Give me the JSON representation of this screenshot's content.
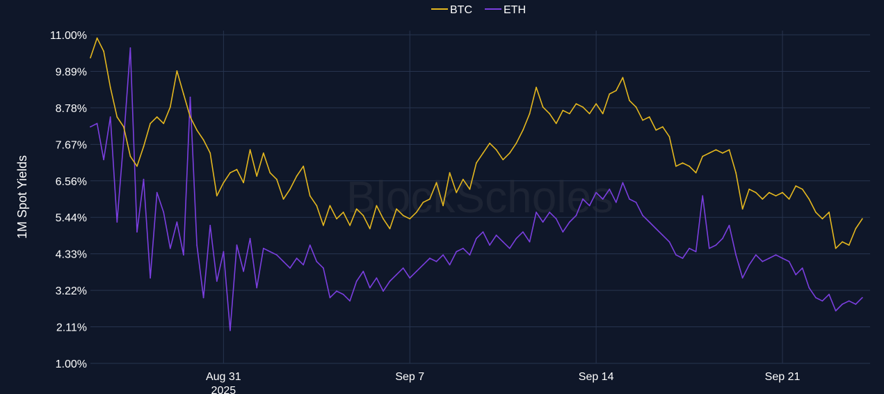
{
  "watermark": "BlockScholes",
  "chart_data": {
    "type": "line",
    "ylabel": "1M Spot Yields",
    "xlabel": "",
    "ylim": [
      1.0,
      11.0
    ],
    "xlim": [
      "2025-08-26 00:00",
      "2025-09-24 07:00"
    ],
    "yticks": [
      "11.00%",
      "9.89%",
      "8.78%",
      "7.67%",
      "6.56%",
      "5.44%",
      "4.33%",
      "3.22%",
      "2.11%",
      "1.00%"
    ],
    "xticks": [
      {
        "date": "2025-08-31",
        "label": "Aug 31",
        "sublabel": "2025"
      },
      {
        "date": "2025-09-07",
        "label": "Sep 7",
        "sublabel": ""
      },
      {
        "date": "2025-09-14",
        "label": "Sep 14",
        "sublabel": ""
      },
      {
        "date": "2025-09-21",
        "label": "Sep 21",
        "sublabel": ""
      }
    ],
    "grid": true,
    "legend_position": "top-center",
    "series": [
      {
        "name": "BTC",
        "color": "#e5b81f",
        "points": [
          [
            "2025-08-26 00:00",
            10.3
          ],
          [
            "2025-08-26 06:00",
            10.9
          ],
          [
            "2025-08-26 12:00",
            10.5
          ],
          [
            "2025-08-26 18:00",
            9.4
          ],
          [
            "2025-08-27 00:00",
            8.5
          ],
          [
            "2025-08-27 06:00",
            8.2
          ],
          [
            "2025-08-27 12:00",
            7.3
          ],
          [
            "2025-08-27 18:00",
            7.0
          ],
          [
            "2025-08-28 00:00",
            7.6
          ],
          [
            "2025-08-28 06:00",
            8.3
          ],
          [
            "2025-08-28 12:00",
            8.5
          ],
          [
            "2025-08-28 18:00",
            8.3
          ],
          [
            "2025-08-29 00:00",
            8.8
          ],
          [
            "2025-08-29 06:00",
            9.9
          ],
          [
            "2025-08-29 12:00",
            9.2
          ],
          [
            "2025-08-29 18:00",
            8.5
          ],
          [
            "2025-08-30 00:00",
            8.1
          ],
          [
            "2025-08-30 06:00",
            7.8
          ],
          [
            "2025-08-30 12:00",
            7.4
          ],
          [
            "2025-08-30 18:00",
            6.1
          ],
          [
            "2025-08-31 00:00",
            6.5
          ],
          [
            "2025-08-31 06:00",
            6.8
          ],
          [
            "2025-08-31 12:00",
            6.9
          ],
          [
            "2025-08-31 18:00",
            6.5
          ],
          [
            "2025-09-01 00:00",
            7.5
          ],
          [
            "2025-09-01 06:00",
            6.7
          ],
          [
            "2025-09-01 12:00",
            7.4
          ],
          [
            "2025-09-01 18:00",
            6.8
          ],
          [
            "2025-09-02 00:00",
            6.6
          ],
          [
            "2025-09-02 06:00",
            6.0
          ],
          [
            "2025-09-02 12:00",
            6.3
          ],
          [
            "2025-09-02 18:00",
            6.7
          ],
          [
            "2025-09-03 00:00",
            7.0
          ],
          [
            "2025-09-03 06:00",
            6.1
          ],
          [
            "2025-09-03 12:00",
            5.8
          ],
          [
            "2025-09-03 18:00",
            5.2
          ],
          [
            "2025-09-04 00:00",
            5.8
          ],
          [
            "2025-09-04 06:00",
            5.4
          ],
          [
            "2025-09-04 12:00",
            5.6
          ],
          [
            "2025-09-04 18:00",
            5.2
          ],
          [
            "2025-09-05 00:00",
            5.7
          ],
          [
            "2025-09-05 06:00",
            5.5
          ],
          [
            "2025-09-05 12:00",
            5.1
          ],
          [
            "2025-09-05 18:00",
            5.8
          ],
          [
            "2025-09-06 00:00",
            5.4
          ],
          [
            "2025-09-06 06:00",
            5.1
          ],
          [
            "2025-09-06 12:00",
            5.7
          ],
          [
            "2025-09-06 18:00",
            5.5
          ],
          [
            "2025-09-07 00:00",
            5.4
          ],
          [
            "2025-09-07 06:00",
            5.6
          ],
          [
            "2025-09-07 12:00",
            5.9
          ],
          [
            "2025-09-07 18:00",
            6.0
          ],
          [
            "2025-09-08 00:00",
            6.5
          ],
          [
            "2025-09-08 06:00",
            5.8
          ],
          [
            "2025-09-08 12:00",
            6.8
          ],
          [
            "2025-09-08 18:00",
            6.2
          ],
          [
            "2025-09-09 00:00",
            6.6
          ],
          [
            "2025-09-09 06:00",
            6.3
          ],
          [
            "2025-09-09 12:00",
            7.1
          ],
          [
            "2025-09-09 18:00",
            7.4
          ],
          [
            "2025-09-10 00:00",
            7.7
          ],
          [
            "2025-09-10 06:00",
            7.5
          ],
          [
            "2025-09-10 12:00",
            7.2
          ],
          [
            "2025-09-10 18:00",
            7.4
          ],
          [
            "2025-09-11 00:00",
            7.7
          ],
          [
            "2025-09-11 06:00",
            8.1
          ],
          [
            "2025-09-11 12:00",
            8.6
          ],
          [
            "2025-09-11 18:00",
            9.4
          ],
          [
            "2025-09-12 00:00",
            8.8
          ],
          [
            "2025-09-12 06:00",
            8.6
          ],
          [
            "2025-09-12 12:00",
            8.3
          ],
          [
            "2025-09-12 18:00",
            8.7
          ],
          [
            "2025-09-13 00:00",
            8.6
          ],
          [
            "2025-09-13 06:00",
            8.9
          ],
          [
            "2025-09-13 12:00",
            8.8
          ],
          [
            "2025-09-13 18:00",
            8.6
          ],
          [
            "2025-09-14 00:00",
            8.9
          ],
          [
            "2025-09-14 06:00",
            8.6
          ],
          [
            "2025-09-14 12:00",
            9.2
          ],
          [
            "2025-09-14 18:00",
            9.3
          ],
          [
            "2025-09-15 00:00",
            9.7
          ],
          [
            "2025-09-15 06:00",
            9.0
          ],
          [
            "2025-09-15 12:00",
            8.8
          ],
          [
            "2025-09-15 18:00",
            8.4
          ],
          [
            "2025-09-16 00:00",
            8.5
          ],
          [
            "2025-09-16 06:00",
            8.1
          ],
          [
            "2025-09-16 12:00",
            8.2
          ],
          [
            "2025-09-16 18:00",
            7.9
          ],
          [
            "2025-09-17 00:00",
            7.0
          ],
          [
            "2025-09-17 06:00",
            7.1
          ],
          [
            "2025-09-17 12:00",
            7.0
          ],
          [
            "2025-09-17 18:00",
            6.8
          ],
          [
            "2025-09-18 00:00",
            7.3
          ],
          [
            "2025-09-18 06:00",
            7.4
          ],
          [
            "2025-09-18 12:00",
            7.5
          ],
          [
            "2025-09-18 18:00",
            7.4
          ],
          [
            "2025-09-19 00:00",
            7.5
          ],
          [
            "2025-09-19 06:00",
            6.8
          ],
          [
            "2025-09-19 12:00",
            5.7
          ],
          [
            "2025-09-19 18:00",
            6.3
          ],
          [
            "2025-09-20 00:00",
            6.2
          ],
          [
            "2025-09-20 06:00",
            6.0
          ],
          [
            "2025-09-20 12:00",
            6.2
          ],
          [
            "2025-09-20 18:00",
            6.1
          ],
          [
            "2025-09-21 00:00",
            6.2
          ],
          [
            "2025-09-21 06:00",
            6.0
          ],
          [
            "2025-09-21 12:00",
            6.4
          ],
          [
            "2025-09-21 18:00",
            6.3
          ],
          [
            "2025-09-22 00:00",
            6.0
          ],
          [
            "2025-09-22 06:00",
            5.6
          ],
          [
            "2025-09-22 12:00",
            5.4
          ],
          [
            "2025-09-22 18:00",
            5.6
          ],
          [
            "2025-09-23 00:00",
            4.5
          ],
          [
            "2025-09-23 06:00",
            4.7
          ],
          [
            "2025-09-23 12:00",
            4.6
          ],
          [
            "2025-09-23 18:00",
            5.1
          ],
          [
            "2025-09-24 00:00",
            5.4
          ]
        ]
      },
      {
        "name": "ETH",
        "color": "#7b3fe0",
        "points": [
          [
            "2025-08-26 00:00",
            8.2
          ],
          [
            "2025-08-26 06:00",
            8.3
          ],
          [
            "2025-08-26 12:00",
            7.2
          ],
          [
            "2025-08-26 18:00",
            8.5
          ],
          [
            "2025-08-27 00:00",
            5.3
          ],
          [
            "2025-08-27 06:00",
            7.8
          ],
          [
            "2025-08-27 12:00",
            10.6
          ],
          [
            "2025-08-27 18:00",
            5.0
          ],
          [
            "2025-08-28 00:00",
            6.6
          ],
          [
            "2025-08-28 06:00",
            3.6
          ],
          [
            "2025-08-28 12:00",
            6.2
          ],
          [
            "2025-08-28 18:00",
            5.6
          ],
          [
            "2025-08-29 00:00",
            4.5
          ],
          [
            "2025-08-29 06:00",
            5.3
          ],
          [
            "2025-08-29 12:00",
            4.3
          ],
          [
            "2025-08-29 18:00",
            9.1
          ],
          [
            "2025-08-30 00:00",
            4.6
          ],
          [
            "2025-08-30 06:00",
            3.0
          ],
          [
            "2025-08-30 12:00",
            5.2
          ],
          [
            "2025-08-30 18:00",
            3.5
          ],
          [
            "2025-08-31 00:00",
            4.4
          ],
          [
            "2025-08-31 06:00",
            2.0
          ],
          [
            "2025-08-31 12:00",
            4.6
          ],
          [
            "2025-08-31 18:00",
            3.8
          ],
          [
            "2025-09-01 00:00",
            4.8
          ],
          [
            "2025-09-01 06:00",
            3.3
          ],
          [
            "2025-09-01 12:00",
            4.5
          ],
          [
            "2025-09-01 18:00",
            4.4
          ],
          [
            "2025-09-02 00:00",
            4.3
          ],
          [
            "2025-09-02 06:00",
            4.1
          ],
          [
            "2025-09-02 12:00",
            3.9
          ],
          [
            "2025-09-02 18:00",
            4.2
          ],
          [
            "2025-09-03 00:00",
            4.0
          ],
          [
            "2025-09-03 06:00",
            4.6
          ],
          [
            "2025-09-03 12:00",
            4.1
          ],
          [
            "2025-09-03 18:00",
            3.9
          ],
          [
            "2025-09-04 00:00",
            3.0
          ],
          [
            "2025-09-04 06:00",
            3.2
          ],
          [
            "2025-09-04 12:00",
            3.1
          ],
          [
            "2025-09-04 18:00",
            2.9
          ],
          [
            "2025-09-05 00:00",
            3.5
          ],
          [
            "2025-09-05 06:00",
            3.8
          ],
          [
            "2025-09-05 12:00",
            3.3
          ],
          [
            "2025-09-05 18:00",
            3.6
          ],
          [
            "2025-09-06 00:00",
            3.2
          ],
          [
            "2025-09-06 06:00",
            3.5
          ],
          [
            "2025-09-06 12:00",
            3.7
          ],
          [
            "2025-09-06 18:00",
            3.9
          ],
          [
            "2025-09-07 00:00",
            3.6
          ],
          [
            "2025-09-07 06:00",
            3.8
          ],
          [
            "2025-09-07 12:00",
            4.0
          ],
          [
            "2025-09-07 18:00",
            4.2
          ],
          [
            "2025-09-08 00:00",
            4.1
          ],
          [
            "2025-09-08 06:00",
            4.3
          ],
          [
            "2025-09-08 12:00",
            4.0
          ],
          [
            "2025-09-08 18:00",
            4.4
          ],
          [
            "2025-09-09 00:00",
            4.5
          ],
          [
            "2025-09-09 06:00",
            4.3
          ],
          [
            "2025-09-09 12:00",
            4.8
          ],
          [
            "2025-09-09 18:00",
            5.0
          ],
          [
            "2025-09-10 00:00",
            4.6
          ],
          [
            "2025-09-10 06:00",
            4.9
          ],
          [
            "2025-09-10 12:00",
            4.7
          ],
          [
            "2025-09-10 18:00",
            4.5
          ],
          [
            "2025-09-11 00:00",
            4.8
          ],
          [
            "2025-09-11 06:00",
            5.0
          ],
          [
            "2025-09-11 12:00",
            4.7
          ],
          [
            "2025-09-11 18:00",
            5.6
          ],
          [
            "2025-09-12 00:00",
            5.3
          ],
          [
            "2025-09-12 06:00",
            5.6
          ],
          [
            "2025-09-12 12:00",
            5.4
          ],
          [
            "2025-09-12 18:00",
            5.0
          ],
          [
            "2025-09-13 00:00",
            5.3
          ],
          [
            "2025-09-13 06:00",
            5.5
          ],
          [
            "2025-09-13 12:00",
            6.0
          ],
          [
            "2025-09-13 18:00",
            5.8
          ],
          [
            "2025-09-14 00:00",
            6.2
          ],
          [
            "2025-09-14 06:00",
            6.0
          ],
          [
            "2025-09-14 12:00",
            6.3
          ],
          [
            "2025-09-14 18:00",
            5.9
          ],
          [
            "2025-09-15 00:00",
            6.5
          ],
          [
            "2025-09-15 06:00",
            6.0
          ],
          [
            "2025-09-15 12:00",
            5.9
          ],
          [
            "2025-09-15 18:00",
            5.5
          ],
          [
            "2025-09-16 00:00",
            5.3
          ],
          [
            "2025-09-16 06:00",
            5.1
          ],
          [
            "2025-09-16 12:00",
            4.9
          ],
          [
            "2025-09-16 18:00",
            4.7
          ],
          [
            "2025-09-17 00:00",
            4.3
          ],
          [
            "2025-09-17 06:00",
            4.2
          ],
          [
            "2025-09-17 12:00",
            4.5
          ],
          [
            "2025-09-17 18:00",
            4.4
          ],
          [
            "2025-09-18 00:00",
            6.1
          ],
          [
            "2025-09-18 06:00",
            4.5
          ],
          [
            "2025-09-18 12:00",
            4.6
          ],
          [
            "2025-09-18 18:00",
            4.8
          ],
          [
            "2025-09-19 00:00",
            5.2
          ],
          [
            "2025-09-19 06:00",
            4.3
          ],
          [
            "2025-09-19 12:00",
            3.6
          ],
          [
            "2025-09-19 18:00",
            4.0
          ],
          [
            "2025-09-20 00:00",
            4.3
          ],
          [
            "2025-09-20 06:00",
            4.1
          ],
          [
            "2025-09-20 12:00",
            4.2
          ],
          [
            "2025-09-20 18:00",
            4.3
          ],
          [
            "2025-09-21 00:00",
            4.2
          ],
          [
            "2025-09-21 06:00",
            4.1
          ],
          [
            "2025-09-21 12:00",
            3.7
          ],
          [
            "2025-09-21 18:00",
            3.9
          ],
          [
            "2025-09-22 00:00",
            3.3
          ],
          [
            "2025-09-22 06:00",
            3.0
          ],
          [
            "2025-09-22 12:00",
            2.9
          ],
          [
            "2025-09-22 18:00",
            3.1
          ],
          [
            "2025-09-23 00:00",
            2.6
          ],
          [
            "2025-09-23 06:00",
            2.8
          ],
          [
            "2025-09-23 12:00",
            2.9
          ],
          [
            "2025-09-23 18:00",
            2.8
          ],
          [
            "2025-09-24 00:00",
            3.0
          ]
        ]
      }
    ]
  }
}
